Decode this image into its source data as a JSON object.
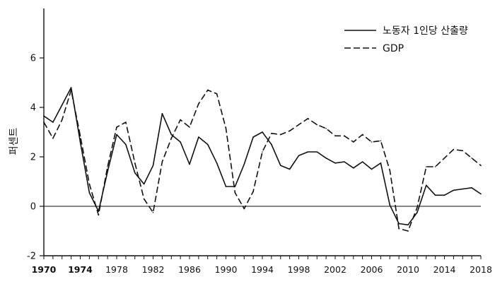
{
  "chart_data": {
    "type": "line",
    "ylabel": "퍼센트",
    "xlabel": "",
    "xlim": [
      1970,
      2018
    ],
    "ylim": [
      -2,
      8
    ],
    "y_ticks": [
      "-2",
      "0",
      "2",
      "4",
      "6"
    ],
    "x_ticks": [
      {
        "label": "1970",
        "value": 1970,
        "bold": true
      },
      {
        "label": "1974",
        "value": 1974,
        "bold": true
      },
      {
        "label": "1978",
        "value": 1978,
        "bold": false
      },
      {
        "label": "1982",
        "value": 1982,
        "bold": false
      },
      {
        "label": "1986",
        "value": 1986,
        "bold": false
      },
      {
        "label": "1990",
        "value": 1990,
        "bold": false
      },
      {
        "label": "1994",
        "value": 1994,
        "bold": false
      },
      {
        "label": "1998",
        "value": 1998,
        "bold": false
      },
      {
        "label": "2002",
        "value": 2002,
        "bold": false
      },
      {
        "label": "2006",
        "value": 2006,
        "bold": false
      },
      {
        "label": "2010",
        "value": 2010,
        "bold": false
      },
      {
        "label": "2014",
        "value": 2014,
        "bold": false
      },
      {
        "label": "2018",
        "value": 2018,
        "bold": false
      }
    ],
    "zero_line": true,
    "legend_position": "top-right",
    "x": [
      1970,
      1971,
      1972,
      1973,
      1974,
      1975,
      1976,
      1977,
      1978,
      1979,
      1980,
      1981,
      1982,
      1983,
      1984,
      1985,
      1986,
      1987,
      1988,
      1989,
      1990,
      1991,
      1992,
      1993,
      1994,
      1995,
      1996,
      1997,
      1998,
      1999,
      2000,
      2001,
      2002,
      2003,
      2004,
      2005,
      2006,
      2007,
      2008,
      2009,
      2010,
      2011,
      2012,
      2013,
      2014,
      2015,
      2016,
      2017,
      2018
    ],
    "series": [
      {
        "name": "노동자 1인당 산출량",
        "style": "solid",
        "color": "#111111",
        "values": [
          3.65,
          3.4,
          4.1,
          4.8,
          2.6,
          0.55,
          -0.2,
          1.4,
          2.9,
          2.5,
          1.35,
          0.9,
          1.65,
          3.75,
          2.9,
          2.6,
          1.7,
          2.8,
          2.5,
          1.75,
          0.8,
          0.8,
          1.7,
          2.8,
          3.0,
          2.5,
          1.65,
          1.5,
          2.05,
          2.2,
          2.2,
          1.95,
          1.75,
          1.8,
          1.55,
          1.8,
          1.5,
          1.75,
          0.05,
          -0.7,
          -0.75,
          -0.25,
          0.85,
          0.45,
          0.45,
          0.65,
          0.7,
          0.75,
          0.5
        ]
      },
      {
        "name": "GDP",
        "style": "dashed",
        "color": "#111111",
        "values": [
          3.4,
          2.75,
          3.5,
          4.7,
          2.85,
          0.9,
          -0.35,
          1.6,
          3.2,
          3.4,
          1.75,
          0.3,
          -0.25,
          1.8,
          2.75,
          3.5,
          3.2,
          4.15,
          4.7,
          4.55,
          3.15,
          0.55,
          -0.1,
          0.6,
          2.2,
          2.95,
          2.9,
          3.05,
          3.3,
          3.55,
          3.3,
          3.15,
          2.85,
          2.85,
          2.6,
          2.9,
          2.6,
          2.65,
          1.45,
          -0.9,
          -1.0,
          -0.05,
          1.6,
          1.6,
          1.95,
          2.3,
          2.25,
          1.95,
          1.65
        ]
      }
    ]
  }
}
